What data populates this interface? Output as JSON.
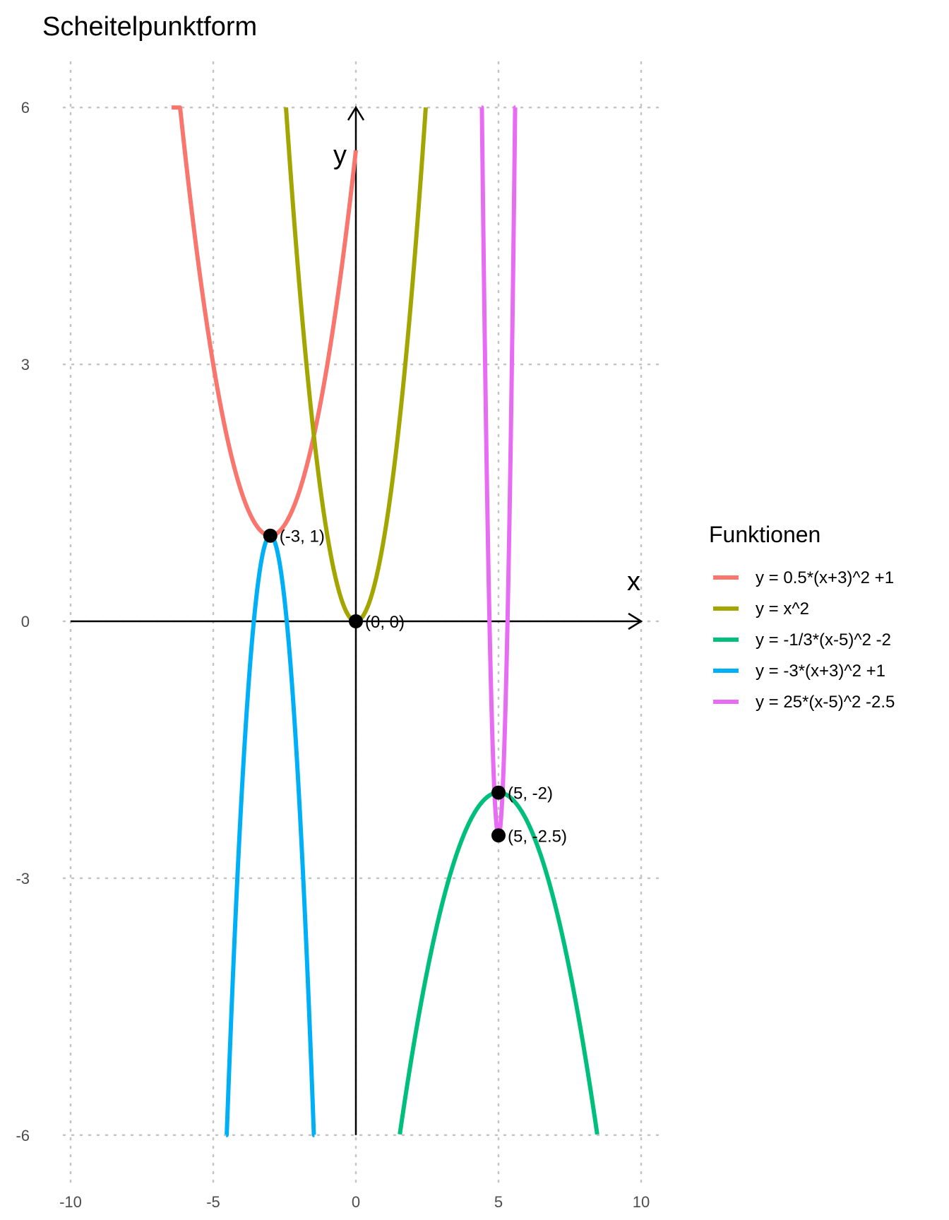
{
  "chart_data": {
    "type": "line",
    "title": "Scheitelpunktform",
    "xlabel": "x",
    "ylabel": "y",
    "xlim": [
      -10,
      10
    ],
    "ylim": [
      -6,
      6
    ],
    "x_ticks": [
      -10,
      -5,
      0,
      5,
      10
    ],
    "y_ticks": [
      -6,
      -3,
      0,
      3,
      6
    ],
    "x_tick_labels": [
      "-10",
      "-5",
      "0",
      "5",
      "10"
    ],
    "y_tick_labels": [
      "-6",
      "-3",
      "0",
      "3",
      "6"
    ],
    "grid": true,
    "legend": {
      "title": "Funktionen",
      "placement": "right"
    },
    "series": [
      {
        "name": "y = 0.5*(x+3)^2 +1",
        "a": 0.5,
        "h": -3,
        "k": 1,
        "x_range": [
          -6.46,
          0
        ],
        "color": "#F8766D"
      },
      {
        "name": "y = x^2",
        "a": 1,
        "h": 0,
        "k": 0,
        "x_range": [
          -2.45,
          2.45
        ],
        "color": "#A3A500"
      },
      {
        "name": "y = -1/3*(x-5)^2 -2",
        "a": -0.3333333,
        "h": 5,
        "k": -2,
        "x_range": [
          1.54,
          8.46
        ],
        "color": "#00BF7D"
      },
      {
        "name": "y = -3*(x+3)^2 +1",
        "a": -3,
        "h": -3,
        "k": 1,
        "x_range": [
          -4.55,
          -1.45
        ],
        "color": "#00B0F6"
      },
      {
        "name": "y = 25*(x-5)^2 -2.5",
        "a": 25,
        "h": 5,
        "k": -2.5,
        "x_range": [
          4.4,
          5.6
        ],
        "color": "#E76BF3"
      }
    ],
    "points": [
      {
        "x": -3,
        "y": 1,
        "label": "(-3, 1)"
      },
      {
        "x": 0,
        "y": 0,
        "label": "(0, 0)"
      },
      {
        "x": 5,
        "y": -2,
        "label": "(5, -2)"
      },
      {
        "x": 5,
        "y": -2.5,
        "label": "(5, -2.5)"
      }
    ]
  }
}
